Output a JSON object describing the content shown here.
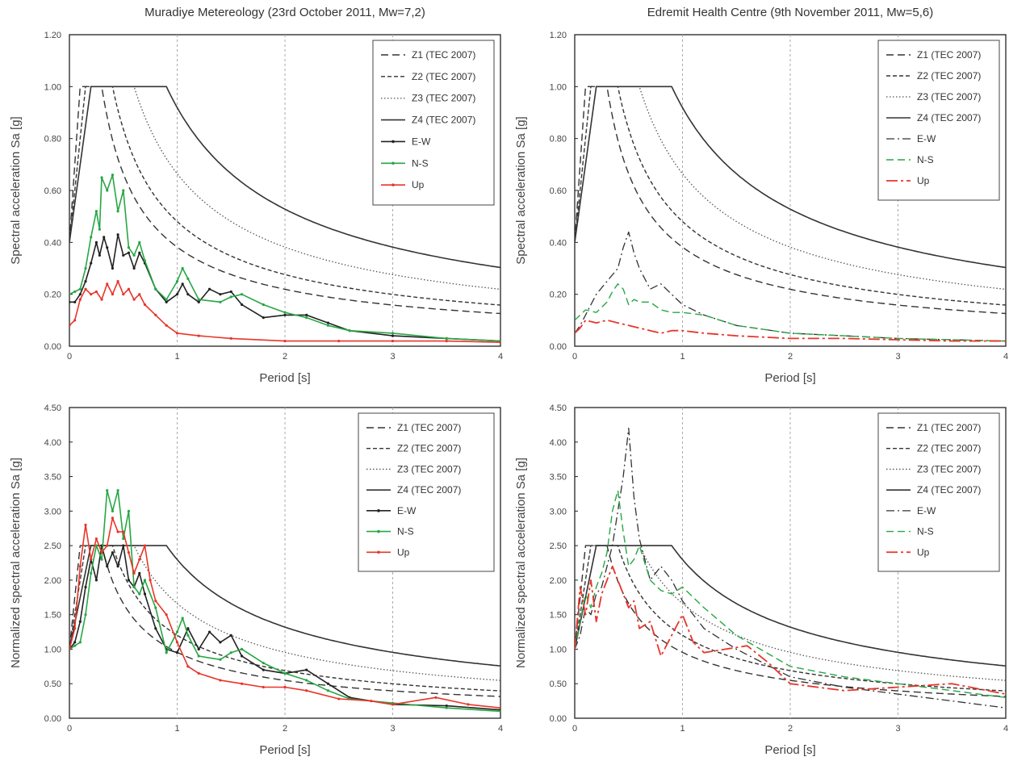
{
  "chart_data": [
    {
      "type": "line",
      "title": "Muradiye Metereology (23rd October 2011, Mw=7,2)",
      "xlabel": "Period [s]",
      "ylabel": "Spectral acceleration Sa [g]",
      "xlim": [
        0,
        4
      ],
      "ylim": [
        0,
        1.2
      ],
      "xticks": [
        "0",
        "1",
        "2",
        "3",
        "4"
      ],
      "yticks": [
        "0.00",
        "0.20",
        "0.40",
        "0.60",
        "0.80",
        "1.00",
        "1.20"
      ],
      "grid": "vertical dashed",
      "legend": "top-right",
      "series": [
        {
          "name": "Z1 (TEC 2007)",
          "style": "dash-long",
          "color": "#333333",
          "design": {
            "TA": 0.1,
            "TB": 0.3,
            "plateau": 1.0,
            "start": 0.4
          }
        },
        {
          "name": "Z2 (TEC 2007)",
          "style": "dash-short",
          "color": "#333333",
          "design": {
            "TA": 0.15,
            "TB": 0.4,
            "plateau": 1.0,
            "start": 0.4
          }
        },
        {
          "name": "Z3 (TEC 2007)",
          "style": "dot",
          "color": "#555555",
          "design": {
            "TA": 0.15,
            "TB": 0.6,
            "plateau": 1.0,
            "start": 0.4
          }
        },
        {
          "name": "Z4 (TEC 2007)",
          "style": "solid",
          "color": "#333333",
          "design": {
            "TA": 0.2,
            "TB": 0.9,
            "plateau": 1.0,
            "start": 0.4
          }
        },
        {
          "name": "E-W",
          "style": "solid",
          "color": "#222222",
          "marker": true,
          "x": [
            0,
            0.05,
            0.1,
            0.15,
            0.2,
            0.25,
            0.28,
            0.32,
            0.35,
            0.4,
            0.45,
            0.5,
            0.55,
            0.6,
            0.65,
            0.7,
            0.8,
            0.9,
            1.0,
            1.05,
            1.1,
            1.2,
            1.3,
            1.4,
            1.5,
            1.6,
            1.8,
            2.0,
            2.2,
            2.4,
            2.6,
            3.0,
            3.5,
            4.0
          ],
          "y": [
            0.17,
            0.17,
            0.2,
            0.25,
            0.32,
            0.4,
            0.35,
            0.42,
            0.38,
            0.3,
            0.43,
            0.35,
            0.36,
            0.3,
            0.36,
            0.32,
            0.22,
            0.17,
            0.2,
            0.24,
            0.2,
            0.17,
            0.22,
            0.2,
            0.21,
            0.16,
            0.11,
            0.12,
            0.12,
            0.09,
            0.06,
            0.04,
            0.03,
            0.02
          ]
        },
        {
          "name": "N-S",
          "style": "solid",
          "color": "#27a744",
          "marker": true,
          "x": [
            0,
            0.05,
            0.1,
            0.15,
            0.2,
            0.25,
            0.28,
            0.3,
            0.35,
            0.4,
            0.45,
            0.5,
            0.55,
            0.6,
            0.65,
            0.7,
            0.8,
            0.9,
            1.0,
            1.05,
            1.1,
            1.2,
            1.4,
            1.5,
            1.6,
            1.8,
            2.0,
            2.2,
            2.4,
            2.6,
            3.0,
            3.5,
            4.0
          ],
          "y": [
            0.2,
            0.21,
            0.22,
            0.3,
            0.42,
            0.52,
            0.45,
            0.65,
            0.6,
            0.66,
            0.52,
            0.6,
            0.38,
            0.35,
            0.4,
            0.33,
            0.22,
            0.18,
            0.25,
            0.3,
            0.26,
            0.18,
            0.17,
            0.19,
            0.2,
            0.16,
            0.13,
            0.11,
            0.08,
            0.06,
            0.05,
            0.03,
            0.02
          ]
        },
        {
          "name": "Up",
          "style": "solid",
          "color": "#e8352a",
          "marker": true,
          "x": [
            0,
            0.05,
            0.1,
            0.15,
            0.2,
            0.25,
            0.3,
            0.35,
            0.4,
            0.45,
            0.5,
            0.55,
            0.6,
            0.65,
            0.7,
            0.8,
            0.9,
            1.0,
            1.2,
            1.5,
            2.0,
            2.5,
            3.0,
            3.5,
            4.0
          ],
          "y": [
            0.08,
            0.1,
            0.18,
            0.22,
            0.2,
            0.21,
            0.18,
            0.24,
            0.2,
            0.25,
            0.2,
            0.22,
            0.18,
            0.2,
            0.16,
            0.12,
            0.08,
            0.05,
            0.04,
            0.03,
            0.02,
            0.02,
            0.02,
            0.02,
            0.015
          ]
        }
      ]
    },
    {
      "type": "line",
      "title": "Edremit Health Centre (9th November 2011, Mw=5,6)",
      "xlabel": "Period [s]",
      "ylabel": "Spectral acceleration Sa [g]",
      "xlim": [
        0,
        4
      ],
      "ylim": [
        0,
        1.2
      ],
      "xticks": [
        "0",
        "1",
        "2",
        "3",
        "4"
      ],
      "yticks": [
        "0.00",
        "0.20",
        "0.40",
        "0.60",
        "0.80",
        "1.00",
        "1.20"
      ],
      "grid": "vertical dashed",
      "legend": "top-right",
      "series": [
        {
          "name": "Z1 (TEC 2007)",
          "style": "dash-long",
          "color": "#333333",
          "design": {
            "TA": 0.1,
            "TB": 0.3,
            "plateau": 1.0,
            "start": 0.4
          }
        },
        {
          "name": "Z2 (TEC 2007)",
          "style": "dash-short",
          "color": "#333333",
          "design": {
            "TA": 0.15,
            "TB": 0.4,
            "plateau": 1.0,
            "start": 0.4
          }
        },
        {
          "name": "Z3 (TEC 2007)",
          "style": "dot",
          "color": "#555555",
          "design": {
            "TA": 0.15,
            "TB": 0.6,
            "plateau": 1.0,
            "start": 0.4
          }
        },
        {
          "name": "Z4 (TEC 2007)",
          "style": "solid",
          "color": "#333333",
          "design": {
            "TA": 0.2,
            "TB": 0.9,
            "plateau": 1.0,
            "start": 0.4
          }
        },
        {
          "name": "E-W",
          "style": "dash-dot",
          "color": "#333333",
          "x": [
            0,
            0.05,
            0.1,
            0.2,
            0.3,
            0.4,
            0.45,
            0.5,
            0.55,
            0.6,
            0.7,
            0.8,
            0.9,
            1.0,
            1.2,
            1.5,
            2.0,
            2.5,
            3.0,
            3.5,
            4.0
          ],
          "y": [
            0.05,
            0.08,
            0.12,
            0.2,
            0.25,
            0.3,
            0.38,
            0.44,
            0.36,
            0.3,
            0.22,
            0.24,
            0.2,
            0.16,
            0.12,
            0.08,
            0.05,
            0.04,
            0.03,
            0.025,
            0.02
          ]
        },
        {
          "name": "N-S",
          "style": "dash-long",
          "color": "#27a744",
          "x": [
            0,
            0.05,
            0.1,
            0.2,
            0.3,
            0.35,
            0.4,
            0.45,
            0.5,
            0.55,
            0.6,
            0.7,
            0.8,
            0.9,
            1.0,
            1.2,
            1.5,
            2.0,
            2.5,
            3.0,
            3.5,
            4.0
          ],
          "y": [
            0.1,
            0.12,
            0.14,
            0.13,
            0.17,
            0.21,
            0.24,
            0.22,
            0.16,
            0.18,
            0.17,
            0.17,
            0.14,
            0.13,
            0.13,
            0.12,
            0.08,
            0.05,
            0.04,
            0.03,
            0.025,
            0.02
          ]
        },
        {
          "name": "Up",
          "style": "dash-dot-long",
          "color": "#e8352a",
          "x": [
            0,
            0.05,
            0.1,
            0.2,
            0.3,
            0.4,
            0.5,
            0.6,
            0.7,
            0.8,
            0.9,
            1.0,
            1.2,
            1.5,
            2.0,
            2.5,
            3.0,
            3.5,
            4.0
          ],
          "y": [
            0.05,
            0.07,
            0.1,
            0.09,
            0.1,
            0.09,
            0.08,
            0.07,
            0.06,
            0.05,
            0.06,
            0.06,
            0.05,
            0.04,
            0.03,
            0.03,
            0.025,
            0.02,
            0.02
          ]
        }
      ]
    },
    {
      "type": "line",
      "title": "",
      "xlabel": "Period [s]",
      "ylabel": "Normalized spectral acceleration Sa [g]",
      "xlim": [
        0,
        4
      ],
      "ylim": [
        0,
        4.5
      ],
      "xticks": [
        "0",
        "1",
        "2",
        "3",
        "4"
      ],
      "yticks": [
        "0.00",
        "0.50",
        "1.00",
        "1.50",
        "2.00",
        "2.50",
        "3.00",
        "3.50",
        "4.00",
        "4.50"
      ],
      "grid": "vertical dashed",
      "legend": "top-right",
      "series": [
        {
          "name": "Z1 (TEC 2007)",
          "style": "dash-long",
          "color": "#333333",
          "design": {
            "TA": 0.1,
            "TB": 0.3,
            "plateau": 2.5,
            "start": 1.0
          }
        },
        {
          "name": "Z2 (TEC 2007)",
          "style": "dash-short",
          "color": "#333333",
          "design": {
            "TA": 0.15,
            "TB": 0.4,
            "plateau": 2.5,
            "start": 1.0
          }
        },
        {
          "name": "Z3 (TEC 2007)",
          "style": "dot",
          "color": "#555555",
          "design": {
            "TA": 0.15,
            "TB": 0.6,
            "plateau": 2.5,
            "start": 1.0
          }
        },
        {
          "name": "Z4 (TEC 2007)",
          "style": "solid",
          "color": "#333333",
          "design": {
            "TA": 0.2,
            "TB": 0.9,
            "plateau": 2.5,
            "start": 1.0
          }
        },
        {
          "name": "E-W",
          "style": "solid",
          "color": "#222222",
          "marker": true,
          "x": [
            0,
            0.05,
            0.1,
            0.15,
            0.2,
            0.25,
            0.3,
            0.35,
            0.4,
            0.45,
            0.5,
            0.55,
            0.6,
            0.65,
            0.7,
            0.8,
            0.9,
            1.0,
            1.1,
            1.2,
            1.3,
            1.4,
            1.5,
            1.6,
            1.8,
            2.0,
            2.2,
            2.4,
            2.6,
            3.0,
            3.5,
            4.0
          ],
          "y": [
            1.0,
            1.1,
            1.4,
            1.9,
            2.3,
            2.0,
            2.5,
            2.2,
            2.4,
            2.2,
            2.5,
            2.0,
            1.9,
            2.1,
            1.8,
            1.3,
            1.0,
            0.95,
            1.3,
            1.0,
            1.25,
            1.1,
            1.2,
            0.9,
            0.7,
            0.65,
            0.7,
            0.5,
            0.3,
            0.2,
            0.18,
            0.12
          ]
        },
        {
          "name": "N-S",
          "style": "solid",
          "color": "#27a744",
          "marker": true,
          "x": [
            0,
            0.05,
            0.1,
            0.15,
            0.2,
            0.25,
            0.3,
            0.35,
            0.4,
            0.45,
            0.5,
            0.55,
            0.6,
            0.65,
            0.7,
            0.8,
            0.9,
            1.0,
            1.05,
            1.1,
            1.2,
            1.4,
            1.5,
            1.6,
            1.8,
            2.0,
            2.2,
            2.4,
            2.6,
            3.0,
            3.5,
            4.0
          ],
          "y": [
            1.0,
            1.05,
            1.1,
            1.5,
            2.1,
            2.5,
            2.3,
            3.3,
            3.0,
            3.3,
            2.6,
            3.0,
            1.9,
            1.8,
            2.0,
            1.6,
            0.95,
            1.25,
            1.45,
            1.2,
            0.9,
            0.85,
            0.95,
            1.0,
            0.8,
            0.65,
            0.55,
            0.4,
            0.28,
            0.22,
            0.15,
            0.1
          ]
        },
        {
          "name": "Up",
          "style": "solid",
          "color": "#e8352a",
          "marker": true,
          "x": [
            0,
            0.05,
            0.1,
            0.15,
            0.2,
            0.25,
            0.3,
            0.35,
            0.4,
            0.45,
            0.5,
            0.55,
            0.6,
            0.65,
            0.7,
            0.75,
            0.8,
            0.9,
            1.0,
            1.1,
            1.2,
            1.4,
            1.6,
            1.8,
            2.0,
            2.2,
            2.5,
            2.8,
            3.0,
            3.4,
            3.7,
            4.0
          ],
          "y": [
            1.0,
            1.3,
            2.2,
            2.8,
            2.3,
            2.6,
            2.4,
            2.5,
            2.9,
            2.7,
            2.7,
            2.4,
            2.1,
            2.3,
            2.5,
            2.0,
            1.7,
            1.5,
            1.1,
            0.75,
            0.65,
            0.55,
            0.5,
            0.45,
            0.45,
            0.4,
            0.28,
            0.25,
            0.2,
            0.3,
            0.2,
            0.15
          ]
        }
      ]
    },
    {
      "type": "line",
      "title": "",
      "xlabel": "Period [s]",
      "ylabel": "Normalized spectral acceleration Sa [g]",
      "xlim": [
        0,
        4
      ],
      "ylim": [
        0,
        4.5
      ],
      "xticks": [
        "0",
        "1",
        "2",
        "3",
        "4"
      ],
      "yticks": [
        "0.00",
        "0.50",
        "1.00",
        "1.50",
        "2.00",
        "2.50",
        "3.00",
        "3.50",
        "4.00",
        "4.50"
      ],
      "grid": "vertical dashed",
      "legend": "top-right",
      "series": [
        {
          "name": "Z1 (TEC 2007)",
          "style": "dash-long",
          "color": "#333333",
          "design": {
            "TA": 0.1,
            "TB": 0.3,
            "plateau": 2.5,
            "start": 1.0
          }
        },
        {
          "name": "Z2 (TEC 2007)",
          "style": "dash-short",
          "color": "#333333",
          "design": {
            "TA": 0.15,
            "TB": 0.4,
            "plateau": 2.5,
            "start": 1.0
          }
        },
        {
          "name": "Z3 (TEC 2007)",
          "style": "dot",
          "color": "#555555",
          "design": {
            "TA": 0.15,
            "TB": 0.6,
            "plateau": 2.5,
            "start": 1.0
          }
        },
        {
          "name": "Z4 (TEC 2007)",
          "style": "solid",
          "color": "#333333",
          "design": {
            "TA": 0.2,
            "TB": 0.9,
            "plateau": 2.5,
            "start": 1.0
          }
        },
        {
          "name": "E-W",
          "style": "dash-dot",
          "color": "#333333",
          "x": [
            0,
            0.05,
            0.1,
            0.15,
            0.2,
            0.25,
            0.3,
            0.35,
            0.4,
            0.45,
            0.5,
            0.55,
            0.6,
            0.7,
            0.8,
            0.9,
            1.0,
            1.2,
            1.5,
            2.0,
            2.5,
            3.0,
            3.5,
            4.0
          ],
          "y": [
            1.0,
            1.2,
            1.6,
            1.5,
            1.8,
            1.9,
            2.2,
            2.5,
            3.0,
            3.5,
            4.2,
            3.2,
            2.6,
            2.0,
            2.2,
            2.0,
            1.7,
            1.3,
            1.0,
            0.6,
            0.45,
            0.35,
            0.25,
            0.15
          ]
        },
        {
          "name": "N-S",
          "style": "dash-long",
          "color": "#27a744",
          "x": [
            0,
            0.05,
            0.1,
            0.15,
            0.2,
            0.25,
            0.3,
            0.35,
            0.4,
            0.45,
            0.5,
            0.55,
            0.6,
            0.7,
            0.8,
            0.9,
            1.0,
            1.2,
            1.5,
            2.0,
            2.5,
            3.0,
            3.5,
            4.0
          ],
          "y": [
            1.0,
            1.4,
            1.8,
            1.6,
            1.9,
            2.1,
            2.4,
            3.0,
            3.3,
            2.7,
            2.2,
            2.3,
            2.5,
            2.0,
            1.85,
            1.8,
            1.9,
            1.6,
            1.2,
            0.75,
            0.6,
            0.5,
            0.4,
            0.3
          ]
        },
        {
          "name": "Up",
          "style": "dash-dot-long",
          "color": "#e8352a",
          "x": [
            0,
            0.05,
            0.1,
            0.15,
            0.2,
            0.25,
            0.3,
            0.35,
            0.4,
            0.45,
            0.5,
            0.55,
            0.6,
            0.7,
            0.8,
            0.9,
            1.0,
            1.1,
            1.2,
            1.4,
            1.6,
            1.8,
            2.0,
            2.5,
            3.0,
            3.5,
            4.0
          ],
          "y": [
            1.0,
            1.9,
            1.5,
            2.0,
            1.4,
            1.8,
            2.0,
            2.2,
            2.0,
            1.8,
            1.6,
            1.7,
            1.3,
            1.4,
            0.9,
            1.2,
            1.5,
            1.1,
            0.95,
            1.0,
            1.05,
            0.8,
            0.5,
            0.4,
            0.45,
            0.5,
            0.35
          ]
        }
      ]
    }
  ]
}
